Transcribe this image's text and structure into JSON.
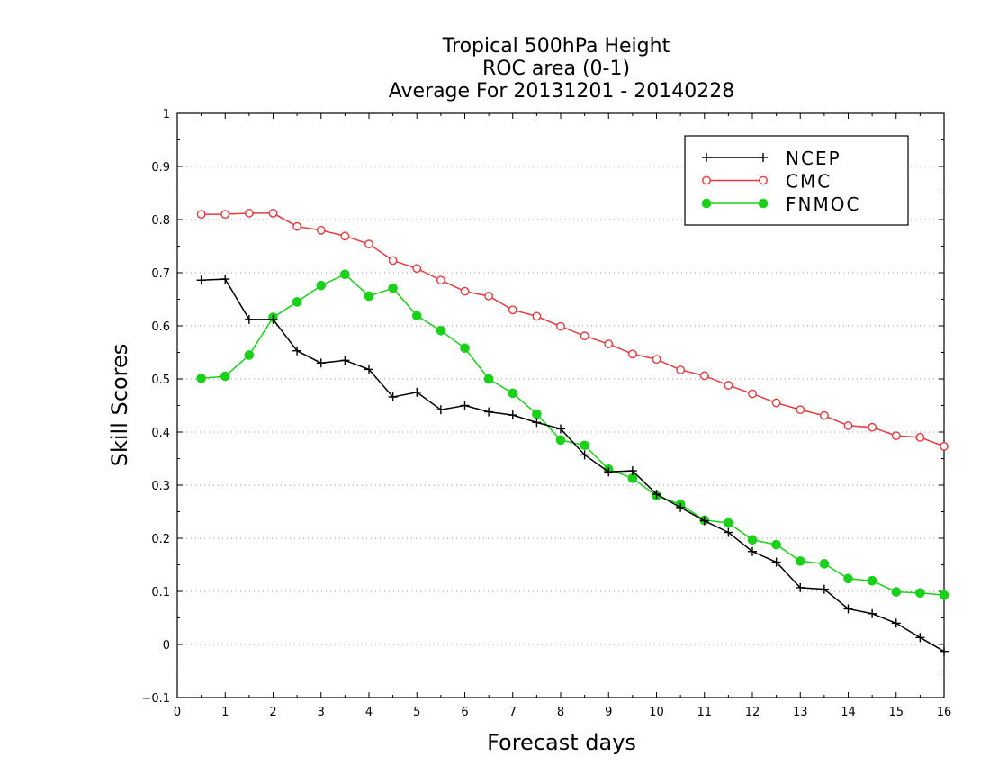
{
  "chart_data": {
    "type": "line",
    "title": [
      "Tropical 500hPa Height",
      "ROC area (0-1)",
      "Average For 20131201 - 20140228"
    ],
    "xlabel": "Forecast days",
    "ylabel": "Skill Scores",
    "xlim": [
      0,
      16
    ],
    "ylim": [
      -0.1,
      1
    ],
    "xticks": [
      "0",
      "1",
      "2",
      "3",
      "4",
      "5",
      "6",
      "7",
      "8",
      "9",
      "10",
      "11",
      "12",
      "13",
      "14",
      "15",
      "16"
    ],
    "yticks": [
      "−0.1",
      "0",
      "0.1",
      "0.2",
      "0.3",
      "0.4",
      "0.5",
      "0.6",
      "0.7",
      "0.8",
      "0.9",
      "1"
    ],
    "grid": true,
    "legend_position": "top-right",
    "x": [
      0.5,
      1,
      1.5,
      2,
      2.5,
      3,
      3.5,
      4,
      4.5,
      5,
      5.5,
      6,
      6.5,
      7,
      7.5,
      8,
      8.5,
      9,
      9.5,
      10,
      10.5,
      11,
      11.5,
      12,
      12.5,
      13,
      13.5,
      14,
      14.5,
      15,
      15.5,
      16
    ],
    "series": [
      {
        "name": "NCEP",
        "color": "#000000",
        "marker": "plus",
        "values": [
          0.686,
          0.688,
          0.612,
          0.612,
          0.553,
          0.53,
          0.535,
          0.518,
          0.466,
          0.475,
          0.442,
          0.45,
          0.438,
          0.432,
          0.418,
          0.406,
          0.357,
          0.325,
          0.327,
          0.283,
          0.258,
          0.233,
          0.211,
          0.175,
          0.155,
          0.107,
          0.104,
          0.067,
          0.058,
          0.04,
          0.013,
          -0.013
        ]
      },
      {
        "name": "CMC",
        "color": "#e8393f",
        "marker": "open-circle",
        "values": [
          0.81,
          0.81,
          0.812,
          0.812,
          0.787,
          0.78,
          0.769,
          0.754,
          0.723,
          0.708,
          0.686,
          0.665,
          0.656,
          0.63,
          0.618,
          0.599,
          0.581,
          0.566,
          0.547,
          0.537,
          0.517,
          0.506,
          0.488,
          0.472,
          0.455,
          0.442,
          0.431,
          0.412,
          0.409,
          0.393,
          0.39,
          0.373
        ]
      },
      {
        "name": "FNMOC",
        "color": "#19d119",
        "marker": "filled-circle",
        "values": [
          0.501,
          0.505,
          0.545,
          0.616,
          0.645,
          0.676,
          0.697,
          0.656,
          0.671,
          0.619,
          0.591,
          0.558,
          0.5,
          0.473,
          0.434,
          0.385,
          0.375,
          0.33,
          0.313,
          0.28,
          0.264,
          0.234,
          0.229,
          0.197,
          0.188,
          0.157,
          0.152,
          0.124,
          0.12,
          0.099,
          0.097,
          0.093
        ]
      }
    ]
  }
}
